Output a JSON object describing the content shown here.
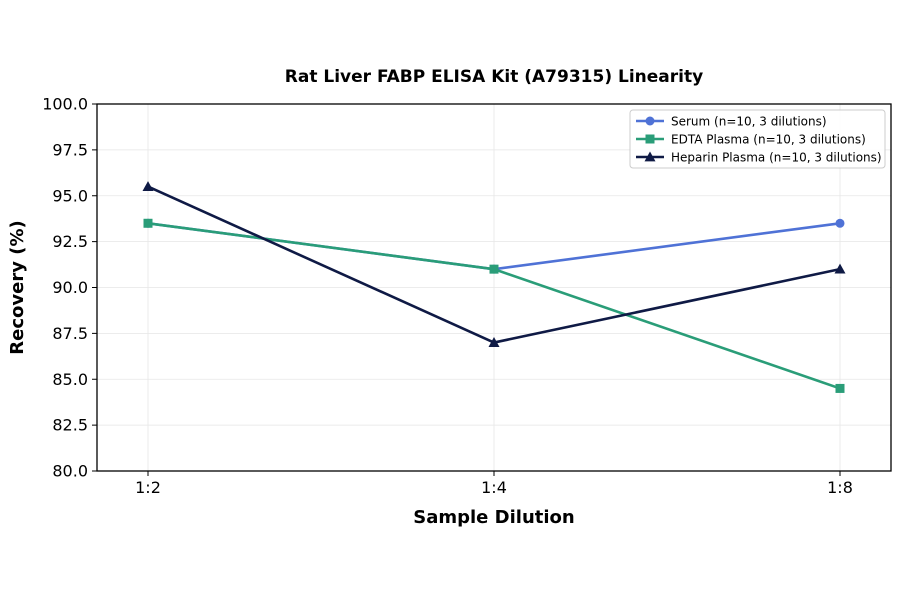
{
  "chart_data": {
    "type": "line",
    "title": "Rat Liver FABP ELISA Kit (A79315) Linearity",
    "xlabel": "Sample Dilution",
    "ylabel": "Recovery (%)",
    "categories": [
      "1:2",
      "1:4",
      "1:8"
    ],
    "ylim": [
      80.0,
      100.0
    ],
    "yticks": [
      "80.0",
      "82.5",
      "85.0",
      "87.5",
      "90.0",
      "92.5",
      "95.0",
      "97.5",
      "100.0"
    ],
    "grid": true,
    "legend_position": "top-right",
    "series": [
      {
        "name": "Serum (n=10, 3 dilutions)",
        "values": [
          93.5,
          91.0,
          93.5
        ],
        "color": "#4f72d6",
        "marker": "circle"
      },
      {
        "name": "EDTA Plasma (n=10, 3 dilutions)",
        "values": [
          93.5,
          91.0,
          84.5
        ],
        "color": "#2a9d78",
        "marker": "square"
      },
      {
        "name": "Heparin Plasma (n=10, 3 dilutions)",
        "values": [
          95.5,
          87.0,
          91.0
        ],
        "color": "#0f1a45",
        "marker": "triangle"
      }
    ]
  }
}
